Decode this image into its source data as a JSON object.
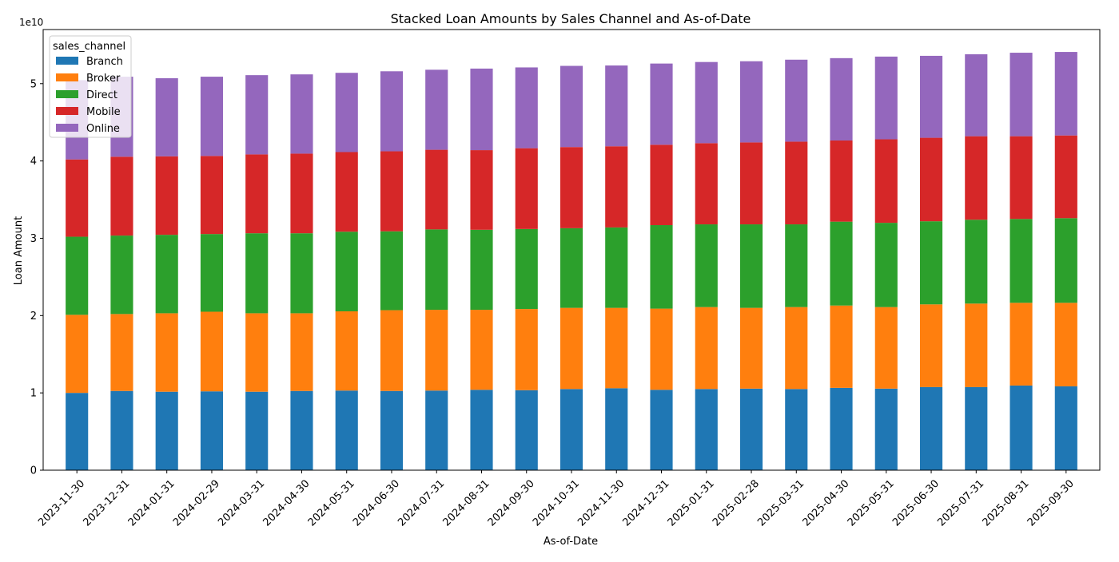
{
  "chart_data": {
    "type": "bar",
    "stacked": true,
    "title": "Stacked Loan Amounts by Sales Channel and As-of-Date",
    "xlabel": "As-of-Date",
    "ylabel": "Loan Amount",
    "y_scale_label": "1e10",
    "ylim": [
      0,
      57000000000
    ],
    "y_ticks": [
      0,
      10000000000,
      20000000000,
      30000000000,
      40000000000,
      50000000000
    ],
    "y_tick_labels": [
      "0",
      "1",
      "2",
      "3",
      "4",
      "5"
    ],
    "grid": false,
    "legend": {
      "title": "sales_channel",
      "placement": "upper-left"
    },
    "categories": [
      "2023-11-30",
      "2023-12-31",
      "2024-01-31",
      "2024-02-29",
      "2024-03-31",
      "2024-04-30",
      "2024-05-31",
      "2024-06-30",
      "2024-07-31",
      "2024-08-31",
      "2024-09-30",
      "2024-10-31",
      "2024-11-30",
      "2024-12-31",
      "2025-01-31",
      "2025-02-28",
      "2025-03-31",
      "2025-04-30",
      "2025-05-31",
      "2025-06-30",
      "2025-07-31",
      "2025-08-31",
      "2025-09-30"
    ],
    "series": [
      {
        "name": "Branch",
        "color": "#1f77b4",
        "values": [
          10000000000,
          10250000000,
          10150000000,
          10200000000,
          10150000000,
          10250000000,
          10300000000,
          10250000000,
          10300000000,
          10400000000,
          10350000000,
          10500000000,
          10600000000,
          10400000000,
          10500000000,
          10550000000,
          10500000000,
          10650000000,
          10550000000,
          10750000000,
          10750000000,
          10950000000,
          10850000000
        ]
      },
      {
        "name": "Broker",
        "color": "#ff7f0e",
        "values": [
          10100000000,
          9950000000,
          10150000000,
          10300000000,
          10150000000,
          10050000000,
          10250000000,
          10450000000,
          10450000000,
          10350000000,
          10500000000,
          10500000000,
          10400000000,
          10500000000,
          10600000000,
          10450000000,
          10600000000,
          10650000000,
          10550000000,
          10700000000,
          10800000000,
          10700000000,
          10800000000
        ]
      },
      {
        "name": "Direct",
        "color": "#2ca02c",
        "values": [
          10100000000,
          10150000000,
          10150000000,
          10050000000,
          10350000000,
          10350000000,
          10300000000,
          10200000000,
          10400000000,
          10350000000,
          10350000000,
          10300000000,
          10400000000,
          10800000000,
          10700000000,
          10800000000,
          10700000000,
          10850000000,
          10900000000,
          10750000000,
          10850000000,
          10850000000,
          10950000000
        ]
      },
      {
        "name": "Mobile",
        "color": "#d62728",
        "values": [
          10000000000,
          10200000000,
          10150000000,
          10100000000,
          10200000000,
          10300000000,
          10300000000,
          10350000000,
          10300000000,
          10300000000,
          10450000000,
          10500000000,
          10500000000,
          10400000000,
          10500000000,
          10600000000,
          10700000000,
          10500000000,
          10800000000,
          10800000000,
          10800000000,
          10700000000,
          10700000000
        ]
      },
      {
        "name": "Online",
        "color": "#9467bd",
        "values": [
          10250000000,
          10350000000,
          10100000000,
          10250000000,
          10250000000,
          10250000000,
          10250000000,
          10350000000,
          10350000000,
          10550000000,
          10450000000,
          10500000000,
          10450000000,
          10500000000,
          10500000000,
          10500000000,
          10600000000,
          10650000000,
          10700000000,
          10600000000,
          10600000000,
          10800000000,
          10800000000
        ]
      }
    ]
  }
}
